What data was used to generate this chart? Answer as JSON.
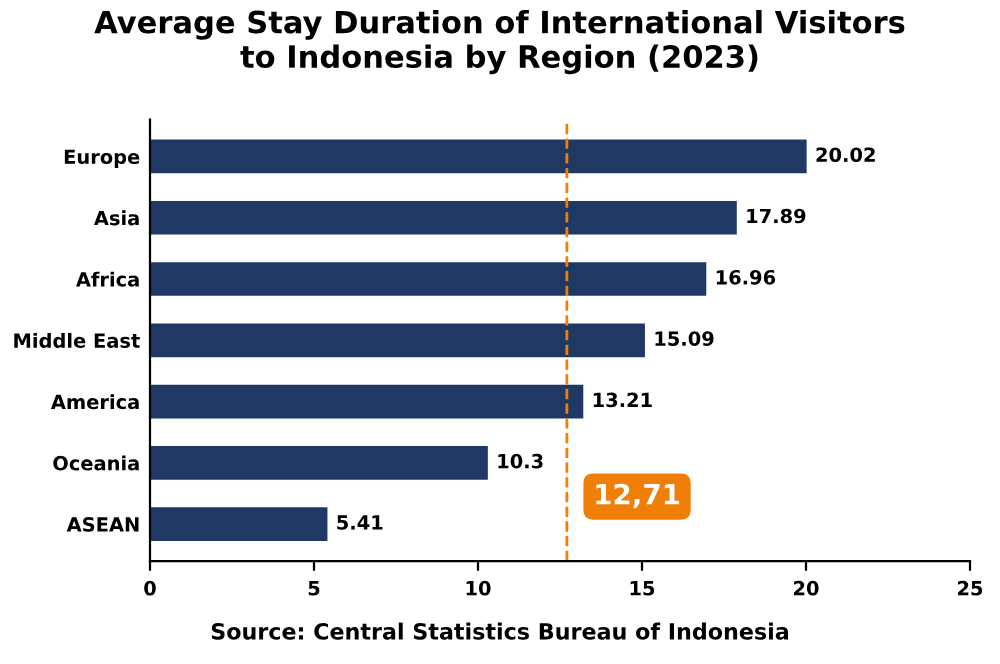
{
  "chart_data": {
    "type": "bar",
    "orientation": "horizontal",
    "title": "Average Stay Duration of International Visitors\nto Indonesia by Region (2023)",
    "categories": [
      "Europe",
      "Asia",
      "Africa",
      "Middle East",
      "America",
      "Oceania",
      "ASEAN"
    ],
    "values": [
      20.02,
      17.89,
      16.96,
      15.09,
      13.21,
      10.3,
      5.41
    ],
    "color": "#1f3864",
    "data_labels": true,
    "xlim": [
      0,
      25
    ],
    "xticks": [
      0,
      5,
      10,
      15,
      20,
      25
    ],
    "grid": false,
    "ref_lines": [
      {
        "axis": "x",
        "value": 12.71,
        "label": "12,71",
        "color": "#f07f09",
        "line_style": "dashed"
      }
    ],
    "annotations": [
      "Source: Central Statistics Bureau of Indonesia"
    ]
  }
}
